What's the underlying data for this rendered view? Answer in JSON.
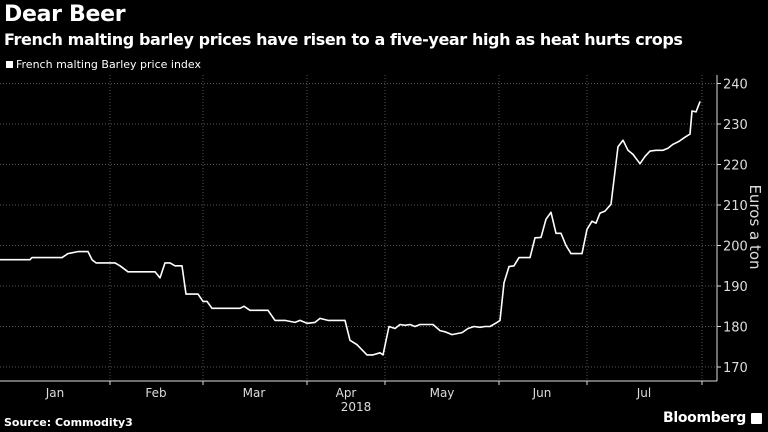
{
  "chart_data": {
    "type": "line",
    "title": "Dear Beer",
    "subtitle": "French malting barley prices have risen to a five-year high as heat hurts crops",
    "legend": [
      "French malting Barley price index"
    ],
    "legend_position": "top-left",
    "xlabel": "2018",
    "ylabel": "Euros a ton",
    "x_unit": "trading-period index",
    "xlim": [
      0,
      179.25
    ],
    "ylim": [
      167,
      242
    ],
    "yticks": [
      170,
      180,
      190,
      200,
      210,
      220,
      230,
      240
    ],
    "month_boundaries": [
      27.5,
      50.75,
      76.75,
      96.25,
      124.75,
      146.75,
      175.5
    ],
    "xtick_labels": [
      {
        "label": "Jan",
        "x": 13.75
      },
      {
        "label": "Feb",
        "x": 39
      },
      {
        "label": "Mar",
        "x": 63.5
      },
      {
        "label": "Apr",
        "x": 86.5
      },
      {
        "label": "May",
        "x": 110.5
      },
      {
        "label": "Jun",
        "x": 135.5
      },
      {
        "label": "Jul",
        "x": 161
      }
    ],
    "year_label_x": 86.5,
    "grid": true,
    "series": [
      {
        "name": "French malting Barley price index",
        "color": "#ffffff",
        "points": [
          [
            0,
            196.5
          ],
          [
            7.5,
            196.5
          ],
          [
            8,
            197
          ],
          [
            15.5,
            197
          ],
          [
            17,
            198
          ],
          [
            18,
            198.2
          ],
          [
            19.5,
            198.5
          ],
          [
            22,
            198.5
          ],
          [
            23,
            196.5
          ],
          [
            24,
            195.7
          ],
          [
            28.75,
            195.7
          ],
          [
            30,
            195
          ],
          [
            32,
            193.5
          ],
          [
            38.75,
            193.5
          ],
          [
            40,
            192
          ],
          [
            41.25,
            195.7
          ],
          [
            42.5,
            195.7
          ],
          [
            43.75,
            195
          ],
          [
            45.5,
            195
          ],
          [
            46.5,
            188
          ],
          [
            49.5,
            188
          ],
          [
            50.75,
            186.2
          ],
          [
            51.75,
            186.2
          ],
          [
            53,
            184.5
          ],
          [
            60,
            184.5
          ],
          [
            61,
            185
          ],
          [
            62.5,
            184
          ],
          [
            67,
            184
          ],
          [
            68.75,
            181.5
          ],
          [
            71.25,
            181.5
          ],
          [
            73.75,
            181
          ],
          [
            75,
            181.5
          ],
          [
            76.75,
            180.8
          ],
          [
            78.75,
            181
          ],
          [
            80,
            182
          ],
          [
            82,
            181.5
          ],
          [
            86.25,
            181.5
          ],
          [
            87.5,
            176.6
          ],
          [
            89.25,
            175.5
          ],
          [
            91.75,
            173
          ],
          [
            93.25,
            173
          ],
          [
            95,
            173.5
          ],
          [
            95.75,
            173
          ],
          [
            97.25,
            180
          ],
          [
            98.75,
            179.5
          ],
          [
            100,
            180.5
          ],
          [
            101.25,
            180.3
          ],
          [
            102.5,
            180.5
          ],
          [
            103.75,
            180
          ],
          [
            105,
            180.5
          ],
          [
            108.25,
            180.5
          ],
          [
            110,
            179
          ],
          [
            111.25,
            178.7
          ],
          [
            113,
            178
          ],
          [
            115.5,
            178.5
          ],
          [
            117,
            179.5
          ],
          [
            118.5,
            180
          ],
          [
            120,
            179.8
          ],
          [
            121.25,
            180
          ],
          [
            122.5,
            180
          ],
          [
            124.25,
            181
          ],
          [
            125,
            181.5
          ],
          [
            126,
            190.8
          ],
          [
            127.25,
            194.8
          ],
          [
            128.5,
            195
          ],
          [
            129.75,
            197
          ],
          [
            132.5,
            197
          ],
          [
            133.75,
            201.9
          ],
          [
            135.25,
            202
          ],
          [
            136.5,
            206.5
          ],
          [
            137.75,
            208.2
          ],
          [
            139,
            203
          ],
          [
            140.25,
            203
          ],
          [
            141.5,
            200
          ],
          [
            142.75,
            198
          ],
          [
            145.5,
            198
          ],
          [
            146.75,
            204
          ],
          [
            148,
            206
          ],
          [
            149,
            205.5
          ],
          [
            150,
            208
          ],
          [
            151.25,
            208.5
          ],
          [
            152.75,
            210.2
          ],
          [
            154.5,
            224.4
          ],
          [
            155.75,
            226
          ],
          [
            157,
            223.5
          ],
          [
            158.25,
            222.5
          ],
          [
            160,
            220.2
          ],
          [
            161.25,
            222
          ],
          [
            162.5,
            223.3
          ],
          [
            164,
            223.5
          ],
          [
            165.75,
            223.5
          ],
          [
            167,
            224
          ],
          [
            168.25,
            225
          ],
          [
            169.75,
            225.7
          ],
          [
            171,
            226.6
          ],
          [
            172.5,
            227.5
          ],
          [
            173,
            233.2
          ],
          [
            174,
            233
          ],
          [
            175,
            235.5
          ]
        ]
      }
    ],
    "source": "Source: Commodity3",
    "brand": "Bloomberg"
  }
}
